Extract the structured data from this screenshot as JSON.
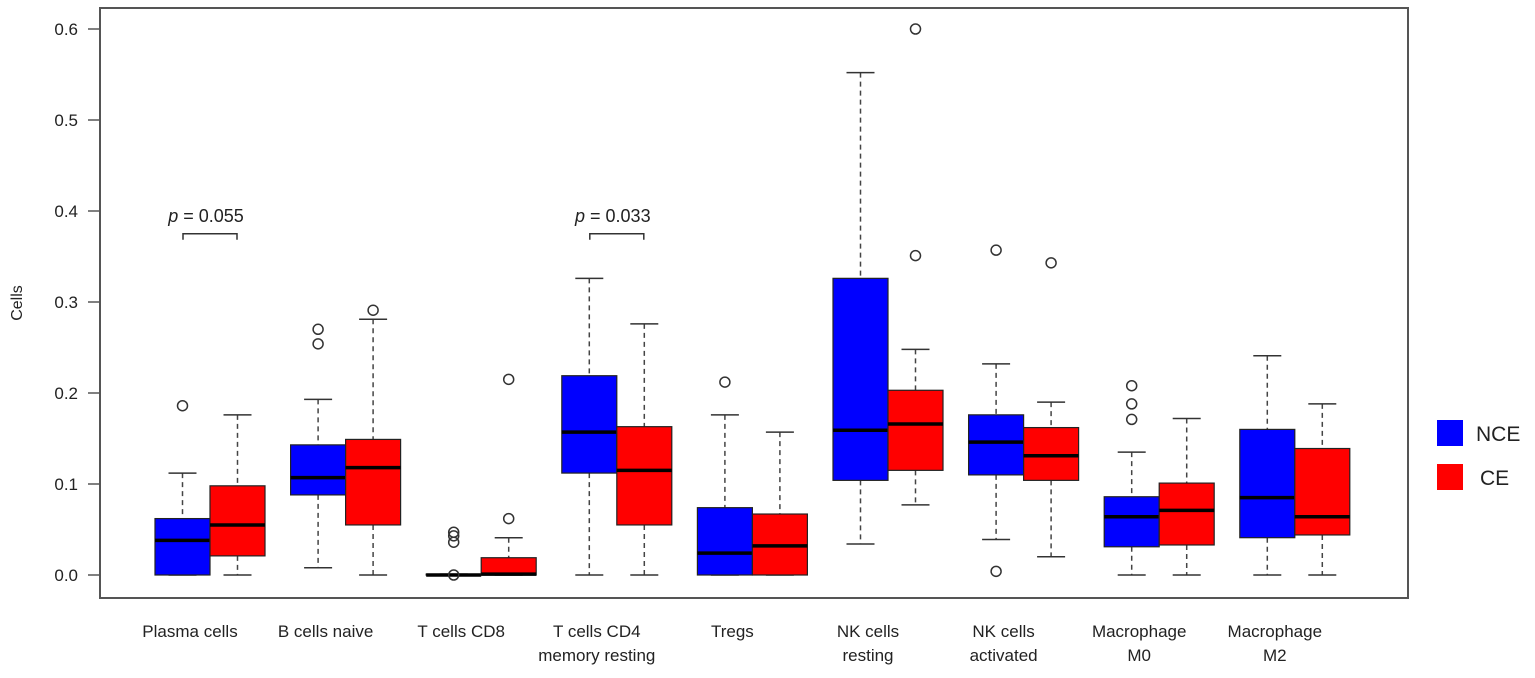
{
  "chart_data": {
    "type": "boxplot",
    "title": "",
    "xlabel": "",
    "ylabel": "Cells",
    "ylim": [
      0,
      0.6
    ],
    "yticks": [
      "0.0",
      "0.1",
      "0.2",
      "0.3",
      "0.4",
      "0.5",
      "0.6"
    ],
    "legend": {
      "placement": "right",
      "entries": [
        {
          "name": "NCE",
          "color": "#0000ff"
        },
        {
          "name": "CE",
          "color": "#ff0000"
        }
      ]
    },
    "categories": [
      {
        "label": [
          "Plasma cells"
        ],
        "NCE": {
          "wlo": 0,
          "q1": 0,
          "med": 0.038,
          "q3": 0.062,
          "whi": 0.112,
          "out": [
            0.186
          ]
        },
        "CE": {
          "wlo": 0,
          "q1": 0.021,
          "med": 0.055,
          "q3": 0.098,
          "whi": 0.176,
          "out": []
        }
      },
      {
        "label": [
          "B cells naive"
        ],
        "NCE": {
          "wlo": 0.008,
          "q1": 0.088,
          "med": 0.107,
          "q3": 0.143,
          "whi": 0.193,
          "out": [
            0.254,
            0.27
          ]
        },
        "CE": {
          "wlo": 0,
          "q1": 0.055,
          "med": 0.118,
          "q3": 0.149,
          "whi": 0.281,
          "out": [
            0.291
          ]
        }
      },
      {
        "label": [
          "T cells CD8"
        ],
        "NCE": {
          "wlo": 0,
          "q1": 0,
          "med": 0,
          "q3": 0.001,
          "whi": 0.001,
          "out": [
            0,
            0.036,
            0.043,
            0.047
          ]
        },
        "CE": {
          "wlo": 0,
          "q1": 0,
          "med": 0.001,
          "q3": 0.019,
          "whi": 0.041,
          "out": [
            0.062,
            0.215
          ]
        }
      },
      {
        "label": [
          "T cells CD4",
          "memory resting"
        ],
        "NCE": {
          "wlo": 0,
          "q1": 0.112,
          "med": 0.157,
          "q3": 0.219,
          "whi": 0.326,
          "out": []
        },
        "CE": {
          "wlo": 0,
          "q1": 0.055,
          "med": 0.115,
          "q3": 0.163,
          "whi": 0.276,
          "out": []
        }
      },
      {
        "label": [
          "Tregs"
        ],
        "NCE": {
          "wlo": 0,
          "q1": 0,
          "med": 0.024,
          "q3": 0.074,
          "whi": 0.176,
          "out": [
            0.212
          ]
        },
        "CE": {
          "wlo": 0,
          "q1": 0,
          "med": 0.032,
          "q3": 0.067,
          "whi": 0.157,
          "out": []
        }
      },
      {
        "label": [
          "NK cells",
          "resting"
        ],
        "NCE": {
          "wlo": 0.034,
          "q1": 0.104,
          "med": 0.159,
          "q3": 0.326,
          "whi": 0.552,
          "out": []
        },
        "CE": {
          "wlo": 0.077,
          "q1": 0.115,
          "med": 0.166,
          "q3": 0.203,
          "whi": 0.248,
          "out": [
            0.351,
            0.6
          ]
        }
      },
      {
        "label": [
          "NK cells",
          "activated"
        ],
        "NCE": {
          "wlo": 0.039,
          "q1": 0.11,
          "med": 0.146,
          "q3": 0.176,
          "whi": 0.232,
          "out": [
            0.004,
            0.357
          ]
        },
        "CE": {
          "wlo": 0.02,
          "q1": 0.104,
          "med": 0.131,
          "q3": 0.162,
          "whi": 0.19,
          "out": [
            0.343
          ]
        }
      },
      {
        "label": [
          "Macrophage",
          "M0"
        ],
        "NCE": {
          "wlo": 0,
          "q1": 0.031,
          "med": 0.064,
          "q3": 0.086,
          "whi": 0.135,
          "out": [
            0.171,
            0.188,
            0.208
          ]
        },
        "CE": {
          "wlo": 0,
          "q1": 0.033,
          "med": 0.071,
          "q3": 0.101,
          "whi": 0.172,
          "out": []
        }
      },
      {
        "label": [
          "Macrophage",
          "M2"
        ],
        "NCE": {
          "wlo": 0,
          "q1": 0.041,
          "med": 0.085,
          "q3": 0.16,
          "whi": 0.241,
          "out": []
        },
        "CE": {
          "wlo": 0,
          "q1": 0.044,
          "med": 0.064,
          "q3": 0.139,
          "whi": 0.188,
          "out": []
        }
      }
    ],
    "annotations": [
      {
        "category_index": 0,
        "p_symbol": "p",
        "text": " = 0.055",
        "y": 0.375
      },
      {
        "category_index": 3,
        "p_symbol": "p",
        "text": " = 0.033",
        "y": 0.375
      }
    ]
  }
}
